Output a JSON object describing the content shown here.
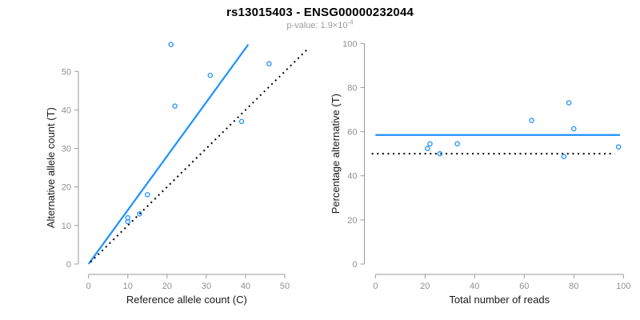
{
  "header": {
    "title": "rs13015403 - ENSG00000232044",
    "pvalue_prefix": "p-value: ",
    "pvalue_mantissa": "1.9",
    "pvalue_times": "×10",
    "pvalue_exponent": "-4"
  },
  "colors": {
    "accent_blue": "#1E90FF",
    "point_blue": "#1E90FF",
    "axis_gray": "#9a9a9a",
    "tick_label_gray": "#909090",
    "subtitle_gray": "#9b9b9b",
    "label_black": "#1a1a1a",
    "dotted_black": "#000000",
    "background": "#ffffff"
  },
  "chart_data": [
    {
      "id": "allele-count-scatter",
      "type": "scatter",
      "xlabel": "Reference allele count (C)",
      "ylabel": "Alternative allele count (T)",
      "xlim": [
        0,
        56
      ],
      "ylim": [
        0,
        57
      ],
      "xticks": [
        0,
        10,
        20,
        30,
        40,
        50
      ],
      "yticks": [
        0,
        10,
        20,
        30,
        40,
        50
      ],
      "grid": false,
      "legend": false,
      "points": [
        [
          10,
          11
        ],
        [
          10,
          12
        ],
        [
          13,
          13
        ],
        [
          15,
          18
        ],
        [
          21,
          57
        ],
        [
          22,
          41
        ],
        [
          31,
          49
        ],
        [
          39,
          37
        ],
        [
          46,
          52
        ]
      ],
      "lines": [
        {
          "name": "regression-line",
          "x1": 0,
          "y1": 0,
          "x2": 40.7,
          "y2": 57,
          "color": "#1E90FF",
          "dash": "",
          "width": 2.2
        },
        {
          "name": "identity-line",
          "x1": 0.5,
          "y1": 0.5,
          "x2": 56,
          "y2": 56,
          "color": "#000000",
          "dash": "2 4.6",
          "width": 2
        }
      ]
    },
    {
      "id": "percentage-scatter",
      "type": "scatter",
      "xlabel": "Total number of reads",
      "ylabel": "Percentage alternative (T)",
      "xlim": [
        0,
        100
      ],
      "ylim": [
        0,
        100
      ],
      "xticks": [
        0,
        20,
        40,
        60,
        80,
        100
      ],
      "yticks": [
        0,
        20,
        40,
        60,
        80,
        100
      ],
      "grid": false,
      "legend": false,
      "points": [
        [
          21,
          52.4
        ],
        [
          22,
          54.5
        ],
        [
          26,
          50
        ],
        [
          33,
          54.5
        ],
        [
          63,
          65.1
        ],
        [
          78,
          73.1
        ],
        [
          80,
          61.3
        ],
        [
          76,
          48.7
        ],
        [
          98,
          53.1
        ]
      ],
      "lines": [
        {
          "name": "mean-percentage-line",
          "x1": 0,
          "y1": 58.5,
          "x2": 98.6,
          "y2": 58.5,
          "color": "#1E90FF",
          "dash": "",
          "width": 2.2
        },
        {
          "name": "fifty-percent-line",
          "x1": -1.5,
          "y1": 50,
          "x2": 96.5,
          "y2": 50,
          "color": "#000000",
          "dash": "2 4.6",
          "width": 2
        }
      ]
    }
  ]
}
